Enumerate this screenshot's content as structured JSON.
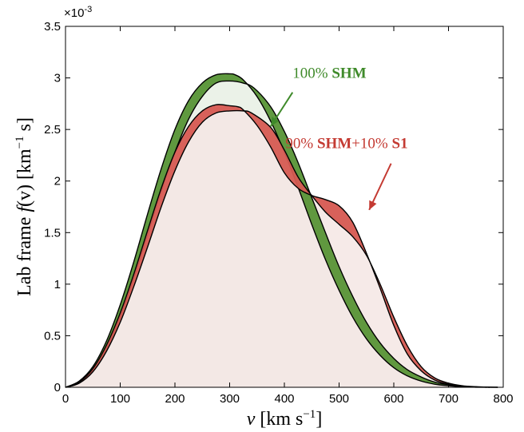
{
  "chart_data": {
    "type": "area",
    "xlabel_var": "v",
    "xlabel_unit": "[km s",
    "xlabel_exp": "−1",
    "xlabel_close": "]",
    "ylabel_main": "Lab frame ",
    "ylabel_func": "f",
    "ylabel_arg": "(v)",
    "ylabel_unit": " [km",
    "ylabel_exp": "−1",
    "ylabel_close": " s]",
    "y_multiplier": "×10",
    "y_multiplier_exp": "-3",
    "xlim": [
      0,
      800
    ],
    "ylim": [
      0,
      3.5
    ],
    "x_ticks": [
      0,
      100,
      200,
      300,
      400,
      500,
      600,
      700,
      800
    ],
    "y_ticks": [
      0,
      0.5,
      1,
      1.5,
      2,
      2.5,
      3,
      3.5
    ],
    "y_tick_labels": [
      "0",
      "0.5",
      "1",
      "1.5",
      "2",
      "2.5",
      "3",
      "3.5"
    ],
    "grid": false,
    "series": [
      {
        "name": "100% SHM",
        "color": "#3f8a2a",
        "band_fill": "#579336",
        "shade": "#e8f0e4",
        "upper": {
          "x": [
            0,
            25,
            50,
            75,
            100,
            125,
            150,
            175,
            200,
            225,
            250,
            275,
            300,
            310,
            325,
            350,
            375,
            400,
            425,
            450,
            475,
            500,
            525,
            550,
            575,
            600,
            625,
            650,
            675,
            700,
            725,
            750,
            770
          ],
          "y": [
            0,
            0.06,
            0.2,
            0.45,
            0.8,
            1.22,
            1.68,
            2.12,
            2.5,
            2.78,
            2.95,
            3.03,
            3.04,
            3.03,
            2.98,
            2.82,
            2.58,
            2.28,
            1.94,
            1.58,
            1.24,
            0.94,
            0.68,
            0.47,
            0.31,
            0.19,
            0.11,
            0.06,
            0.03,
            0.015,
            0.005,
            0.001,
            0
          ]
        },
        "lower": {
          "x": [
            0,
            25,
            50,
            75,
            100,
            125,
            150,
            175,
            200,
            225,
            250,
            275,
            300,
            325,
            345,
            375,
            400,
            425,
            450,
            475,
            500,
            525,
            550,
            575,
            600,
            625,
            650,
            675,
            700,
            725,
            750,
            775,
            790
          ],
          "y": [
            0,
            0.04,
            0.16,
            0.37,
            0.68,
            1.06,
            1.48,
            1.9,
            2.28,
            2.6,
            2.82,
            2.95,
            2.97,
            2.95,
            2.9,
            2.72,
            2.48,
            2.18,
            1.84,
            1.5,
            1.17,
            0.88,
            0.63,
            0.43,
            0.28,
            0.17,
            0.1,
            0.05,
            0.025,
            0.01,
            0.004,
            0.001,
            0
          ]
        }
      },
      {
        "name": "90% SHM+10% S1",
        "color": "#c43a32",
        "band_fill": "#d65a52",
        "shade": "#f4e6e4",
        "upper": {
          "x": [
            0,
            25,
            50,
            75,
            100,
            125,
            150,
            175,
            200,
            225,
            250,
            275,
            300,
            315,
            325,
            350,
            375,
            400,
            425,
            450,
            475,
            500,
            525,
            550,
            575,
            600,
            625,
            650,
            675,
            700,
            725,
            750,
            775
          ],
          "y": [
            0,
            0.05,
            0.18,
            0.41,
            0.72,
            1.1,
            1.52,
            1.93,
            2.28,
            2.53,
            2.68,
            2.74,
            2.73,
            2.72,
            2.69,
            2.54,
            2.33,
            2.08,
            1.93,
            1.86,
            1.82,
            1.76,
            1.6,
            1.3,
            0.96,
            0.6,
            0.32,
            0.16,
            0.07,
            0.03,
            0.01,
            0.003,
            0
          ]
        },
        "lower": {
          "x": [
            0,
            25,
            50,
            75,
            100,
            125,
            150,
            175,
            200,
            225,
            250,
            275,
            300,
            325,
            340,
            375,
            400,
            425,
            450,
            475,
            500,
            525,
            550,
            575,
            600,
            625,
            650,
            675,
            700,
            725,
            750,
            775,
            790
          ],
          "y": [
            0,
            0.04,
            0.15,
            0.35,
            0.63,
            0.98,
            1.36,
            1.75,
            2.1,
            2.38,
            2.57,
            2.66,
            2.68,
            2.68,
            2.66,
            2.52,
            2.3,
            2.04,
            1.86,
            1.7,
            1.58,
            1.46,
            1.28,
            1.0,
            0.68,
            0.4,
            0.2,
            0.09,
            0.04,
            0.015,
            0.005,
            0.001,
            0
          ]
        }
      }
    ],
    "annotations": [
      {
        "series": "100% SHM",
        "pct": "100%",
        "bold": "SHM",
        "rest": "",
        "rest_bold": "",
        "color": "#3f8a2a",
        "text_at": [
          415,
          3.0
        ],
        "arrow_from": [
          415,
          2.86
        ],
        "arrow_to": [
          375,
          2.53
        ]
      },
      {
        "series": "90% SHM+10% S1",
        "pct": "90%",
        "bold": "SHM",
        "rest": "+10%",
        "rest_bold": "S1",
        "color": "#c43a32",
        "text_at": [
          402,
          2.32
        ],
        "arrow_from": [
          595,
          2.17
        ],
        "arrow_to": [
          555,
          1.72
        ]
      }
    ]
  }
}
